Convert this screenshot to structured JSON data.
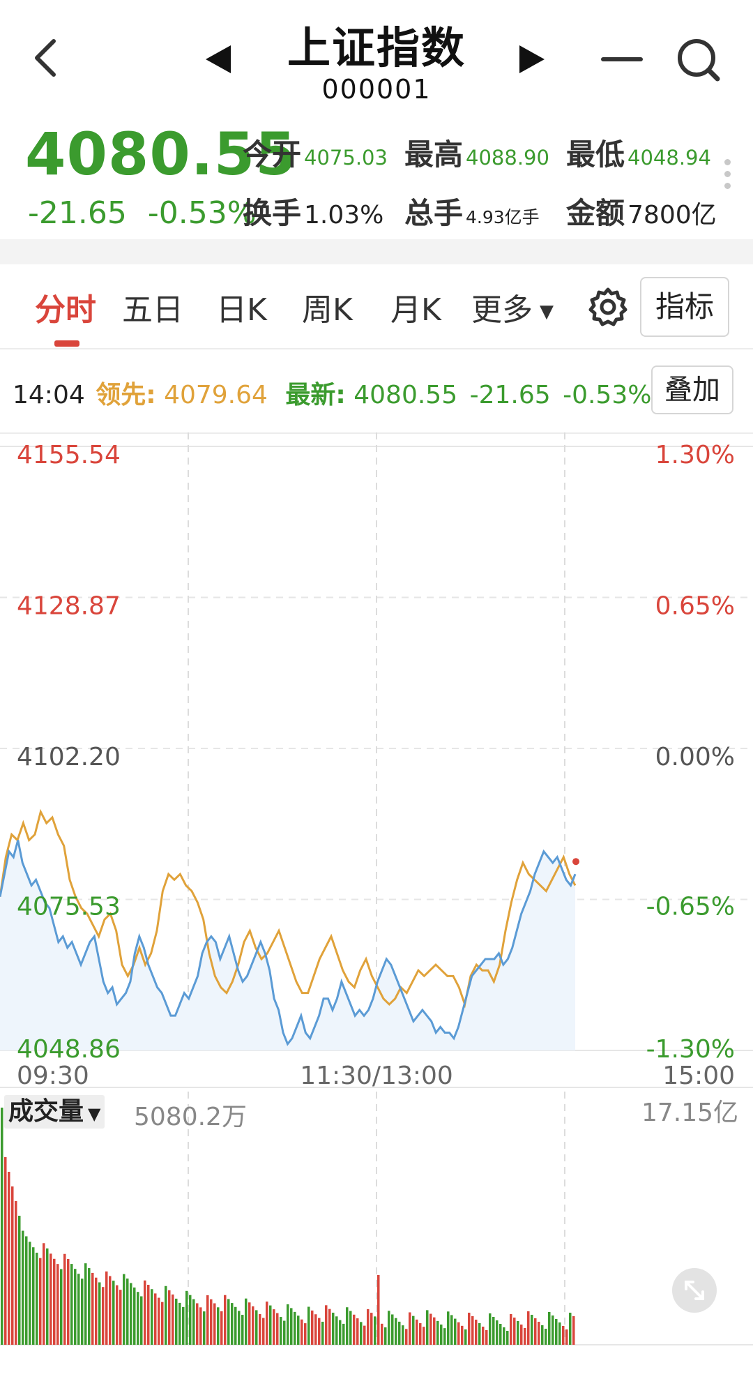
{
  "header": {
    "title": "上证指数",
    "code": "000001",
    "icons": [
      "back-arrow-icon",
      "prev-triangle-icon",
      "next-triangle-icon",
      "minus-icon",
      "search-icon"
    ]
  },
  "quote": {
    "price": "4080.55",
    "change": "-21.65",
    "change_pct": "-0.53%",
    "stats": {
      "open_label": "今开",
      "open": "4075.03",
      "high_label": "最高",
      "high": "4088.90",
      "low_label": "最低",
      "low": "4048.94",
      "turnover_label": "换手",
      "turnover": "1.03%",
      "volume_label": "总手",
      "volume": "4.93亿手",
      "amount_label": "金额",
      "amount": "7800亿"
    }
  },
  "tabs": {
    "items": [
      "分时",
      "五日",
      "日K",
      "周K",
      "月K",
      "更多"
    ],
    "active": "分时",
    "indicator_label": "指标"
  },
  "info": {
    "time": "14:04",
    "lead_label": "领先:",
    "lead_value": "4079.64",
    "latest_label": "最新:",
    "latest_value": "4080.55",
    "latest_change": "-21.65",
    "latest_pct": "-0.53%",
    "overlay_label": "叠加"
  },
  "colors": {
    "up": "#d9453b",
    "down": "#3b9b2e",
    "lead_line": "#e0a23a",
    "price_line": "#5b9bd5",
    "fill": "#eef5fc"
  },
  "chart_data": {
    "type": "line",
    "x_labels": [
      "09:30",
      "11:30/13:00",
      "15:00"
    ],
    "y_left": [
      "4155.54",
      "4128.87",
      "4102.20",
      "4075.53",
      "4048.86"
    ],
    "y_right": [
      "1.30%",
      "0.65%",
      "0.00%",
      "-0.65%",
      "-1.30%"
    ],
    "ylim": [
      4048.86,
      4155.54
    ],
    "prev_close": 4102.2,
    "sessions": 240,
    "series": [
      {
        "role": "price",
        "values": [
          4076,
          4080,
          4084,
          4083,
          4086,
          4082,
          4080,
          4078,
          4079,
          4077,
          4075,
          4074,
          4071,
          4068,
          4069,
          4067,
          4068,
          4066,
          4064,
          4066,
          4068,
          4069,
          4065,
          4061,
          4059,
          4060,
          4057,
          4058,
          4059,
          4061,
          4066,
          4069,
          4067,
          4064,
          4062,
          4060,
          4059,
          4057,
          4055,
          4055,
          4057,
          4059,
          4058,
          4060,
          4062,
          4066,
          4068,
          4069,
          4068,
          4065,
          4067,
          4069,
          4066,
          4063,
          4061,
          4062,
          4064,
          4066,
          4068,
          4066,
          4063,
          4058,
          4056,
          4052,
          4050,
          4051,
          4053,
          4055,
          4052,
          4051,
          4053,
          4055,
          4058,
          4058,
          4056,
          4058,
          4061,
          4059,
          4057,
          4055,
          4056,
          4055,
          4056,
          4058,
          4061,
          4063,
          4065,
          4064,
          4062,
          4060,
          4058,
          4056,
          4054,
          4055,
          4056,
          4055,
          4054,
          4052,
          4053,
          4052,
          4052,
          4051,
          4053,
          4056,
          4059,
          4062,
          4063,
          4064,
          4065,
          4065,
          4065,
          4066,
          4064,
          4065,
          4067,
          4070,
          4073,
          4075,
          4077,
          4080,
          4082,
          4084,
          4083,
          4082,
          4083,
          4081,
          4079,
          4078,
          4080
        ]
      },
      {
        "role": "lead",
        "values": [
          4076,
          4083,
          4087,
          4086,
          4089,
          4086,
          4087,
          4091,
          4089,
          4090,
          4087,
          4085,
          4079,
          4076,
          4074,
          4073,
          4071,
          4069,
          4072,
          4073,
          4070,
          4064,
          4062,
          4064,
          4067,
          4064,
          4066,
          4070,
          4077,
          4080,
          4079,
          4080,
          4078,
          4077,
          4075,
          4072,
          4066,
          4062,
          4060,
          4059,
          4061,
          4064,
          4068,
          4070,
          4067,
          4065,
          4066,
          4068,
          4070,
          4067,
          4064,
          4061,
          4059,
          4059,
          4062,
          4065,
          4067,
          4069,
          4066,
          4063,
          4061,
          4060,
          4063,
          4065,
          4062,
          4060,
          4058,
          4057,
          4058,
          4060,
          4059,
          4061,
          4063,
          4062,
          4063,
          4064,
          4063,
          4062,
          4062,
          4060,
          4057,
          4062,
          4064,
          4063,
          4063,
          4061,
          4064,
          4070,
          4075,
          4079,
          4082,
          4080,
          4079,
          4078,
          4077,
          4079,
          4081,
          4083,
          4080,
          4078
        ]
      }
    ],
    "volume": {
      "label": "成交量",
      "current": "5080.2万",
      "max_label": "17.15亿"
    }
  }
}
